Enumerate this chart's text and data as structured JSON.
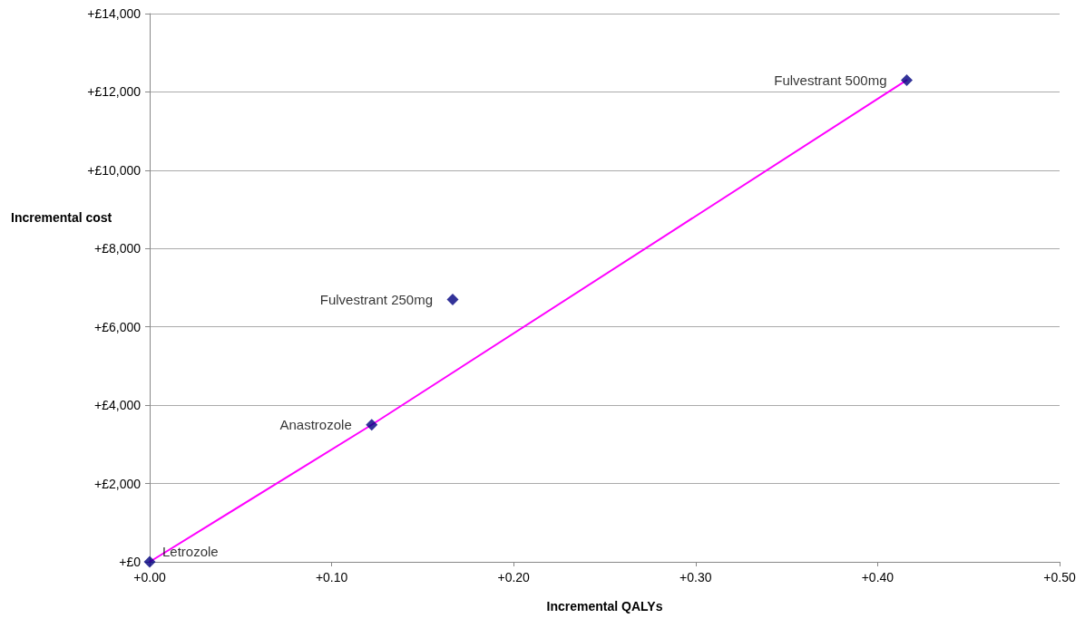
{
  "chart_data": {
    "type": "scatter",
    "xlabel": "Incremental QALYs",
    "ylabel": "Incremental cost",
    "x": [
      0,
      0.122,
      0.1665,
      0.416
    ],
    "series": [
      {
        "type": "line",
        "color": "#ff00ff",
        "x": [
          0,
          0.122,
          0.416
        ],
        "values": [
          0,
          3500,
          12300
        ],
        "marker": "none",
        "line_style": "solid"
      },
      {
        "color": "#000080",
        "values": [
          0,
          3500,
          6700,
          12300
        ],
        "marker": "diamond"
      }
    ],
    "annotations": [
      {
        "text": "Letrozole",
        "x": 0,
        "y": 0
      },
      {
        "text": "Anastrozole",
        "x": 0.122,
        "y": 3500
      },
      {
        "text": "Fulvestrant 250mg",
        "x": 0.1665,
        "y": 6700
      },
      {
        "text": "Fulvestrant 500mg",
        "x": 0.416,
        "y": 12300
      }
    ],
    "xlim": [
      0,
      0.5
    ],
    "xticks": [
      {
        "value": 0,
        "label": "+0.00"
      },
      {
        "value": 0.1,
        "label": "+0.10"
      },
      {
        "value": 0.2,
        "label": "+0.20"
      },
      {
        "value": 0.3,
        "label": "+0.30"
      },
      {
        "value": 0.4,
        "label": "+0.40"
      },
      {
        "value": 0.5,
        "label": "+0.50"
      }
    ],
    "ylim": [
      0,
      14000
    ],
    "yticks": [
      {
        "value": 0,
        "label": "+£0"
      },
      {
        "value": 2000,
        "label": "+£2,000"
      },
      {
        "value": 4000,
        "label": "+£4,000"
      },
      {
        "value": 6000,
        "label": "+£6,000"
      },
      {
        "value": 8000,
        "label": "+£8,000"
      },
      {
        "value": 10000,
        "label": "+£10,000"
      },
      {
        "value": 12000,
        "label": "+£12,000"
      },
      {
        "value": 14000,
        "label": "+£14,000"
      }
    ],
    "grid": "y"
  }
}
